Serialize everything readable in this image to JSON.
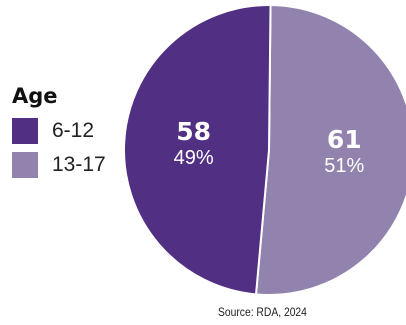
{
  "chart_data": {
    "type": "pie",
    "legend_title": "Age",
    "legend_position": "left",
    "slices": [
      {
        "label": "6-12",
        "value": 58,
        "percent": "49%",
        "color": "#512F82"
      },
      {
        "label": "13-17",
        "value": 61,
        "percent": "51%",
        "color": "#9183AE"
      }
    ],
    "source": "Source: RDA, 2024"
  }
}
